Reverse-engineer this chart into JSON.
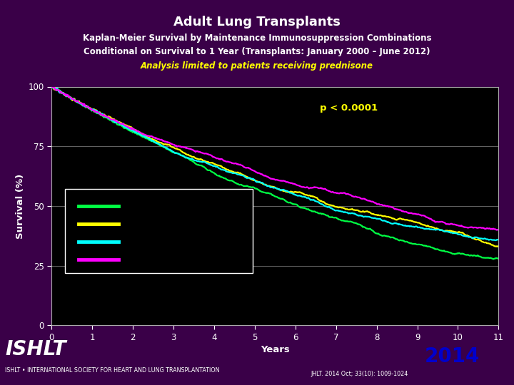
{
  "title": "Adult Lung Transplants",
  "subtitle1": "Kaplan-Meier Survival by Maintenance Immunosuppression Combinations",
  "subtitle2": "Conditional on Survival to 1 Year (Transplants: January 2000 – June 2012)",
  "subtitle3": "Analysis limited to patients receiving prednisone",
  "xlabel": "Years",
  "ylabel": "Survival (%)",
  "pvalue": "p < 0.0001",
  "background_outer": "#3a0048",
  "background_plot": "#000000",
  "title_color": "#ffffff",
  "subtitle_color": "#ffffff",
  "subtitle3_color": "#ffff00",
  "pvalue_color": "#ffff00",
  "axis_color": "#aaaaaa",
  "tick_color": "#ffffff",
  "grid_color": "#606060",
  "xlim": [
    0,
    11
  ],
  "ylim": [
    0,
    100
  ],
  "xticks": [
    0,
    1,
    2,
    3,
    4,
    5,
    6,
    7,
    8,
    9,
    10,
    11
  ],
  "yticks": [
    0,
    25,
    50,
    75,
    100
  ],
  "line_colors": [
    "#00ff44",
    "#ffff00",
    "#00ffff",
    "#ff00ff"
  ],
  "footer_red_bg": "#cc0000",
  "footer_text": "2014",
  "footer_text_color": "#0000cc",
  "footer_subtext": "JHLT. 2014 Oct; 33(10): 1009-1024",
  "ishlt_text": "ISHLT • INTERNATIONAL SOCIETY FOR HEART AND LUNG TRANSPLANTATION"
}
